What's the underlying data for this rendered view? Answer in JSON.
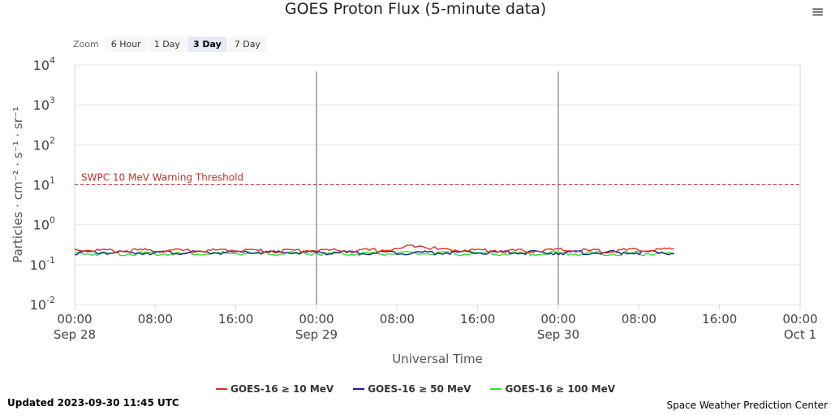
{
  "header": {
    "title": "GOES Proton Flux (5-minute data)",
    "menu_icon": "hamburger-menu-icon"
  },
  "zoom": {
    "label": "Zoom",
    "buttons": [
      {
        "label": "6 Hour",
        "active": false
      },
      {
        "label": "1 Day",
        "active": false
      },
      {
        "label": "3 Day",
        "active": true
      },
      {
        "label": "7 Day",
        "active": false
      }
    ]
  },
  "footer": {
    "updated": "Updated 2023-09-30 11:45 UTC",
    "credit": "Space Weather Prediction Center"
  },
  "chart_data": {
    "type": "line",
    "xlabel": "Universal Time",
    "ylabel": "Particles · cm⁻² · s⁻¹ · sr⁻¹",
    "yscale": "log",
    "ylim": [
      0.01,
      10000
    ],
    "y_ticks": [
      {
        "base": "10",
        "exp": "-2"
      },
      {
        "base": "10",
        "exp": "-1"
      },
      {
        "base": "10",
        "exp": "0"
      },
      {
        "base": "10",
        "exp": "1"
      },
      {
        "base": "10",
        "exp": "2"
      },
      {
        "base": "10",
        "exp": "3"
      },
      {
        "base": "10",
        "exp": "4"
      }
    ],
    "xlim_hours": [
      0,
      72
    ],
    "x_ticks": [
      {
        "time": "00:00",
        "date": "Sep 28"
      },
      {
        "time": "08:00",
        "date": ""
      },
      {
        "time": "16:00",
        "date": ""
      },
      {
        "time": "00:00",
        "date": "Sep 29"
      },
      {
        "time": "08:00",
        "date": ""
      },
      {
        "time": "16:00",
        "date": ""
      },
      {
        "time": "00:00",
        "date": "Sep 30"
      },
      {
        "time": "08:00",
        "date": ""
      },
      {
        "time": "16:00",
        "date": ""
      },
      {
        "time": "00:00",
        "date": "Oct 1"
      }
    ],
    "day_boundaries": [
      "Sep 29",
      "Sep 30"
    ],
    "threshold": {
      "label": "SWPC 10 MeV Warning Threshold",
      "value": 10,
      "color": "#c0302a"
    },
    "grid": true,
    "legend_position": "bottom",
    "series": [
      {
        "name": "GOES-16 ≥ 10 MeV",
        "color": "#e0301e",
        "points": [
          [
            0,
            0.24
          ],
          [
            4,
            0.22
          ],
          [
            8,
            0.23
          ],
          [
            12,
            0.22
          ],
          [
            16,
            0.23
          ],
          [
            20,
            0.22
          ],
          [
            24,
            0.23
          ],
          [
            28,
            0.22
          ],
          [
            32,
            0.24
          ],
          [
            34,
            0.32
          ],
          [
            36,
            0.24
          ],
          [
            40,
            0.23
          ],
          [
            44,
            0.22
          ],
          [
            48,
            0.23
          ],
          [
            52,
            0.22
          ],
          [
            56,
            0.23
          ],
          [
            59.5,
            0.24
          ]
        ]
      },
      {
        "name": "GOES-16 ≥ 50 MeV",
        "color": "#1a1aa0",
        "points": [
          [
            0,
            0.2
          ],
          [
            8,
            0.2
          ],
          [
            16,
            0.2
          ],
          [
            24,
            0.2
          ],
          [
            32,
            0.2
          ],
          [
            40,
            0.2
          ],
          [
            48,
            0.2
          ],
          [
            56,
            0.2
          ],
          [
            59.5,
            0.2
          ]
        ]
      },
      {
        "name": "GOES-16 ≥ 100 MeV",
        "color": "#33dd33",
        "points": [
          [
            0,
            0.19
          ],
          [
            8,
            0.19
          ],
          [
            16,
            0.19
          ],
          [
            24,
            0.19
          ],
          [
            32,
            0.19
          ],
          [
            40,
            0.19
          ],
          [
            48,
            0.19
          ],
          [
            56,
            0.19
          ],
          [
            59.5,
            0.19
          ]
        ]
      }
    ]
  }
}
